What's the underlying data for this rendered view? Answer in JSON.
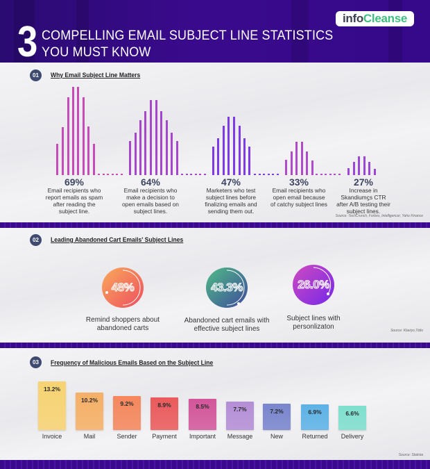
{
  "header": {
    "logo_part1": "info",
    "logo_part2": "Cleanse",
    "big_number": "3",
    "title_line1": "COMPELLING EMAIL SUBJECT LINE STATISTICS",
    "title_line2": "YOU MUST KNOW"
  },
  "section1": {
    "badge": "01",
    "heading": "Why Email Subject Line Matters",
    "stats": [
      {
        "value": "69%",
        "description": "Email recipients who report emails as spam after reading the subject line.",
        "color": "#c64bb8"
      },
      {
        "value": "64%",
        "description": "Email recipients who make a decision to open emails based on subject lines.",
        "color": "#a646cc"
      },
      {
        "value": "47%",
        "description": "Marketers who test subject lines before finalizing emails and sending them out.",
        "color": "#7c3be6"
      },
      {
        "value": "33%",
        "description": "Email recipients who open email because of catchy subject lines",
        "color": "#b14ac6"
      },
      {
        "value": "27%",
        "description": "Increase in Skandiumϛs CTR after A/B testing their subject lines.",
        "color": "#9a47d8"
      }
    ],
    "source": "Source: TechCrunch, Forbes, Intelligencer, Yaho Finance"
  },
  "section2": {
    "badge": "02",
    "heading": "Leading Abandoned Cart Emails' Subject Lines",
    "stats": [
      {
        "value": "48%",
        "label": "Remind shoppers about abandoned carts",
        "colors": [
          "#f9a95c",
          "#ee4e5e"
        ]
      },
      {
        "value": "43.3%",
        "label": "Abandoned cart emails with effective subject lines",
        "colors": [
          "#4fbb86",
          "#3f4c9c"
        ]
      },
      {
        "value": "26.0%",
        "label": "Subject lines with personlizaton",
        "colors": [
          "#cf4bbf",
          "#7627ea"
        ]
      }
    ],
    "source": "Source: Klaviyo,Tidio"
  },
  "section3": {
    "badge": "03",
    "heading": "Frequency of Malicious Emails Based on the Subject Line",
    "source": "Source: Statista"
  },
  "chart_data": {
    "type": "bar",
    "title": "Frequency of Malicious Emails Based on the Subject Line",
    "categories": [
      "Invoice",
      "Mail",
      "Sender",
      "Payment",
      "Important",
      "Message",
      "New",
      "Returned",
      "Delivery"
    ],
    "values": [
      13.2,
      10.2,
      9.2,
      8.9,
      8.5,
      7.7,
      7.2,
      6.9,
      6.6
    ],
    "value_labels": [
      "13.2%",
      "10.2%",
      "9.2%",
      "8.9%",
      "8.5%",
      "7.7%",
      "7.2%",
      "6.9%",
      "6.6%"
    ],
    "colors": [
      "#f7d372",
      "#f6b066",
      "#f5875c",
      "#ea5a5c",
      "#d2569a",
      "#b48ed6",
      "#7985cd",
      "#5db2e6",
      "#7fdfcf"
    ],
    "xlabel": "",
    "ylabel": "",
    "grid": false
  }
}
